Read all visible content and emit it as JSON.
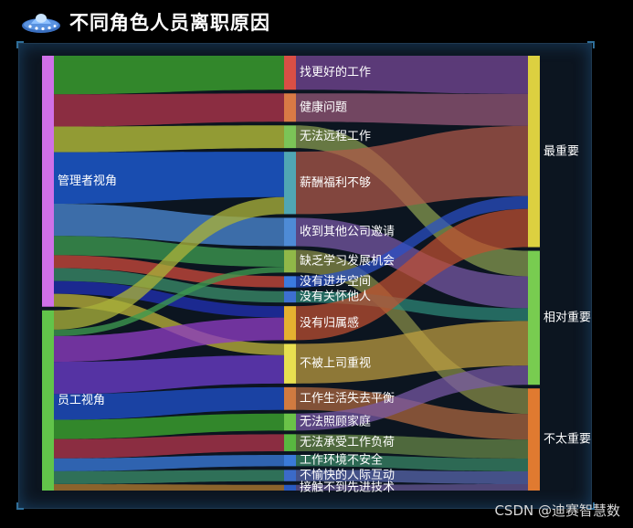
{
  "header": {
    "title": "不同角色人员离职原因",
    "logo_icon": "ufo-icon"
  },
  "watermark": "CSDN @迪赛智慧数",
  "sankey": {
    "left_nodes": [
      {
        "id": "mgr",
        "label": "管理者视角",
        "color": "#d070e8"
      },
      {
        "id": "emp",
        "label": "员工视角",
        "color": "#62c44a"
      }
    ],
    "mid_nodes": [
      {
        "id": "m1",
        "label": "找更好的工作",
        "color": "#d94f45"
      },
      {
        "id": "m2",
        "label": "健康问题",
        "color": "#d97a45"
      },
      {
        "id": "m3",
        "label": "无法远程工作",
        "color": "#7bc457"
      },
      {
        "id": "m4",
        "label": "薪酬福利不够",
        "color": "#50a6b3"
      },
      {
        "id": "m5",
        "label": "收到其他公司邀请",
        "color": "#4e8bd6"
      },
      {
        "id": "m6",
        "label": "缺乏学习发展机会",
        "color": "#90b848"
      },
      {
        "id": "m7",
        "label": "没有进步空间",
        "color": "#3b7be0"
      },
      {
        "id": "m8",
        "label": "没有关怀他人",
        "color": "#3d6fd0"
      },
      {
        "id": "m9",
        "label": "没有归属感",
        "color": "#e5b030"
      },
      {
        "id": "m10",
        "label": "不被上司重视",
        "color": "#e8e050"
      },
      {
        "id": "m11",
        "label": "工作生活失去平衡",
        "color": "#d07a40"
      },
      {
        "id": "m12",
        "label": "无法照顾家庭",
        "color": "#6ac248"
      },
      {
        "id": "m13",
        "label": "无法承受工作负荷",
        "color": "#58b840"
      },
      {
        "id": "m14",
        "label": "工作环境不安全",
        "color": "#3a7ad8"
      },
      {
        "id": "m15",
        "label": "不愉快的人际互动",
        "color": "#3b6ac8"
      },
      {
        "id": "m16",
        "label": "接触不到先进技术",
        "color": "#2a5ac0"
      }
    ],
    "right_nodes": [
      {
        "id": "r1",
        "label": "最重要",
        "color": "#dcd040"
      },
      {
        "id": "r2",
        "label": "相对重要",
        "color": "#78cc50"
      },
      {
        "id": "r3",
        "label": "不太重要",
        "color": "#e07a30"
      }
    ],
    "links_left": [
      {
        "source": "mgr",
        "target": "m1",
        "value": 6,
        "color": "#3ea82e"
      },
      {
        "source": "mgr",
        "target": "m2",
        "value": 5,
        "color": "#b0354a"
      },
      {
        "source": "mgr",
        "target": "m3",
        "value": 4,
        "color": "#b8c23a"
      },
      {
        "source": "mgr",
        "target": "m4",
        "value": 8,
        "color": "#1d5ed8"
      },
      {
        "source": "mgr",
        "target": "m5",
        "value": 5,
        "color": "#4a86d0"
      },
      {
        "source": "mgr",
        "target": "m6",
        "value": 3,
        "color": "#3e9a50"
      },
      {
        "source": "mgr",
        "target": "m7",
        "value": 2,
        "color": "#c8483a"
      },
      {
        "source": "mgr",
        "target": "m8",
        "value": 2,
        "color": "#3a8a68"
      },
      {
        "source": "mgr",
        "target": "m9",
        "value": 2,
        "color": "#2030b0"
      },
      {
        "source": "mgr",
        "target": "m10",
        "value": 2,
        "color": "#b8b03a"
      },
      {
        "source": "emp",
        "target": "m4",
        "value": 3,
        "color": "#a8b03a"
      },
      {
        "source": "emp",
        "target": "m6",
        "value": 1,
        "color": "#3e9a50"
      },
      {
        "source": "emp",
        "target": "m9",
        "value": 4,
        "color": "#8d3cc0"
      },
      {
        "source": "emp",
        "target": "m10",
        "value": 5,
        "color": "#6a3cc8"
      },
      {
        "source": "emp",
        "target": "m11",
        "value": 4,
        "color": "#1f4fc8"
      },
      {
        "source": "emp",
        "target": "m12",
        "value": 3,
        "color": "#3ea82e"
      },
      {
        "source": "emp",
        "target": "m13",
        "value": 3,
        "color": "#b0354a"
      },
      {
        "source": "emp",
        "target": "m14",
        "value": 2,
        "color": "#3a7ad8"
      },
      {
        "source": "emp",
        "target": "m15",
        "value": 2,
        "color": "#3a8a68"
      },
      {
        "source": "emp",
        "target": "m16",
        "value": 1,
        "color": "#b07a30"
      }
    ],
    "links_right": [
      {
        "source": "m1",
        "target": "r1",
        "value": 6,
        "color": "#7a4a9a"
      },
      {
        "source": "m2",
        "target": "r1",
        "value": 5,
        "color": "#9a5a7a"
      },
      {
        "source": "m3",
        "target": "r2",
        "value": 4,
        "color": "#8aa050"
      },
      {
        "source": "m4",
        "target": "r1",
        "value": 11,
        "color": "#b05a4a"
      },
      {
        "source": "m5",
        "target": "r2",
        "value": 5,
        "color": "#7a5aa8"
      },
      {
        "source": "m6",
        "target": "r3",
        "value": 4,
        "color": "#8a9048"
      },
      {
        "source": "m7",
        "target": "r1",
        "value": 2,
        "color": "#2a50c8"
      },
      {
        "source": "m8",
        "target": "r2",
        "value": 2,
        "color": "#2e8a78"
      },
      {
        "source": "m9",
        "target": "r1",
        "value": 6,
        "color": "#c05030"
      },
      {
        "source": "m10",
        "target": "r2",
        "value": 7,
        "color": "#c0a040"
      },
      {
        "source": "m11",
        "target": "r3",
        "value": 4,
        "color": "#b06a40"
      },
      {
        "source": "m12",
        "target": "r2",
        "value": 3,
        "color": "#7a5aa8"
      },
      {
        "source": "m13",
        "target": "r3",
        "value": 3,
        "color": "#6a8a48"
      },
      {
        "source": "m14",
        "target": "r3",
        "value": 2,
        "color": "#3a8a68"
      },
      {
        "source": "m15",
        "target": "r3",
        "value": 2,
        "color": "#5a6ab0"
      },
      {
        "source": "m16",
        "target": "r3",
        "value": 1,
        "color": "#6a5a98"
      }
    ]
  }
}
